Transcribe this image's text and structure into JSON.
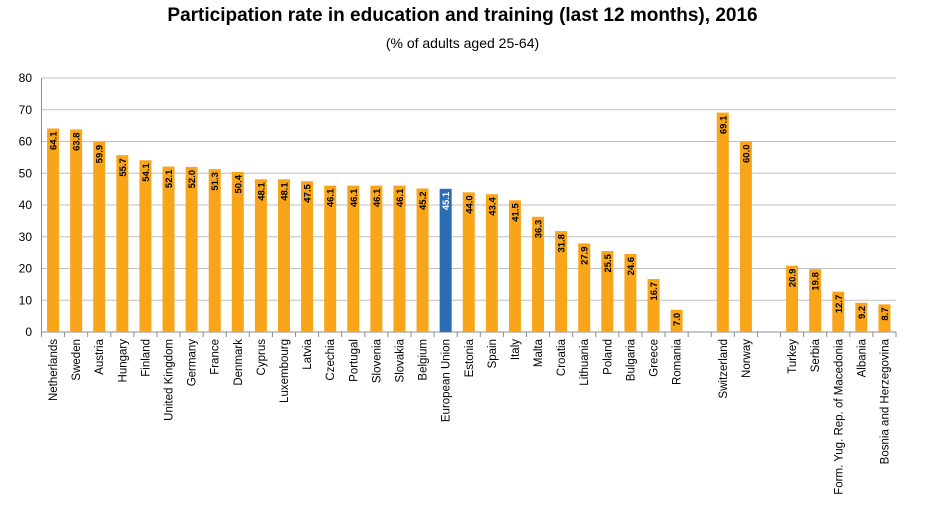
{
  "chart_data": {
    "type": "bar",
    "title": "Participation rate in education and training (last 12 months), 2016",
    "subtitle": "(% of adults aged 25-64)",
    "xlabel": "",
    "ylabel": "",
    "ylim": [
      0,
      80
    ],
    "yticks": [
      0,
      10,
      20,
      30,
      40,
      50,
      60,
      70,
      80
    ],
    "grid": true,
    "categories": [
      "Netherlands",
      "Sweden",
      "Austria",
      "Hungary",
      "Finland",
      "United Kingdom",
      "Germany",
      "France",
      "Denmark",
      "Cyprus",
      "Luxembourg",
      "Latvia",
      "Czechia",
      "Portugal",
      "Slovenia",
      "Slovakia",
      "Belgium",
      "European Union",
      "Estonia",
      "Spain",
      "Italy",
      "Malta",
      "Croatia",
      "Lithuania",
      "Poland",
      "Bulgaria",
      "Greece",
      "Romania",
      "",
      "Switzerland",
      "Norway",
      "",
      "Turkey",
      "Serbia",
      "Form. Yug. Rep. of Macedonia",
      "Albania",
      "Bosnia and Herzegovina"
    ],
    "values": [
      64.1,
      63.8,
      59.9,
      55.7,
      54.1,
      52.1,
      52.0,
      51.3,
      50.4,
      48.1,
      48.1,
      47.5,
      46.1,
      46.1,
      46.1,
      46.1,
      45.2,
      45.1,
      44.0,
      43.4,
      41.5,
      36.3,
      31.8,
      27.9,
      25.5,
      24.6,
      16.7,
      7.0,
      null,
      69.1,
      60.0,
      null,
      20.9,
      19.8,
      12.7,
      9.2,
      8.7
    ],
    "value_labels": [
      "64.1",
      "63.8",
      "59.9",
      "55.7",
      "54.1",
      "52.1",
      "52.0",
      "51.3",
      "50.4",
      "48.1",
      "48.1",
      "47.5",
      "46.1",
      "46.1",
      "46.1",
      "46.1",
      "45.2",
      "45.1",
      "44.0",
      "43.4",
      "41.5",
      "36.3",
      "31.8",
      "27.9",
      "25.5",
      "24.6",
      "16.7",
      "7.0",
      "",
      "69.1",
      "60.0",
      "",
      "20.9",
      "19.8",
      "12.7",
      "9.2",
      "8.7"
    ],
    "highlight": "European Union",
    "colors": {
      "bar": "#F9A51A",
      "highlight": "#2B6CB4",
      "grid": "#BFBFBF",
      "axis": "#8C8C8C"
    }
  }
}
